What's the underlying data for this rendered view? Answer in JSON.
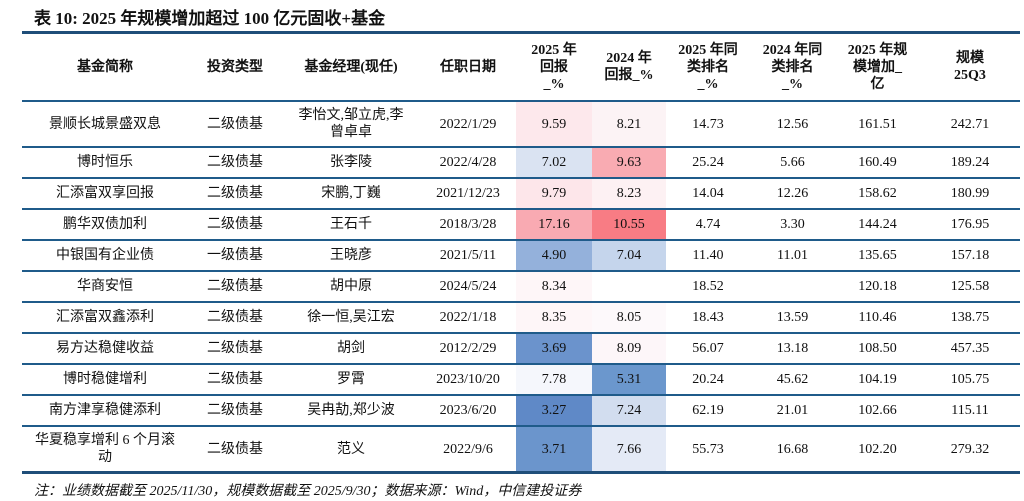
{
  "title": "表 10: 2025 年规模增加超过 100 亿元固收+基金",
  "headers": [
    "基金简称",
    "投资类型",
    "基金经理(现任)",
    "任职日期",
    "2025 年回报_%",
    "2024 年回报_%",
    "2025 年同类排名_%",
    "2024 年同类排名_%",
    "2025 年规模增加_亿",
    "规模 25Q3"
  ],
  "rows": [
    {
      "name": "景顺长城景盛双息",
      "type": "二级债基",
      "manager": "李怡文,邹立虎,李曾卓卓",
      "date": "2022/1/29",
      "r25": "9.59",
      "r24": "8.21",
      "rank25": "14.73",
      "rank24": "12.56",
      "inc": "161.51",
      "scale": "242.71",
      "c25": "#fde8ec",
      "c24": "#fcf3f5"
    },
    {
      "name": "博时恒乐",
      "type": "二级债基",
      "manager": "张李陵",
      "date": "2022/4/28",
      "r25": "7.02",
      "r24": "9.63",
      "rank25": "25.24",
      "rank24": "5.66",
      "inc": "160.49",
      "scale": "189.24",
      "c25": "#dae3f2",
      "c24": "#f9abb2"
    },
    {
      "name": "汇添富双享回报",
      "type": "二级债基",
      "manager": "宋鹏,丁巍",
      "date": "2021/12/23",
      "r25": "9.79",
      "r24": "8.23",
      "rank25": "14.04",
      "rank24": "12.26",
      "inc": "158.62",
      "scale": "180.99",
      "c25": "#fde6ea",
      "c24": "#fdf1f3"
    },
    {
      "name": "鹏华双债加利",
      "type": "二级债基",
      "manager": "王石千",
      "date": "2018/3/28",
      "r25": "17.16",
      "r24": "10.55",
      "rank25": "4.74",
      "rank24": "3.30",
      "inc": "144.24",
      "scale": "176.95",
      "c25": "#f9aab2",
      "c24": "#f87c84"
    },
    {
      "name": "中银国有企业债",
      "type": "一级债基",
      "manager": "王晓彦",
      "date": "2021/5/11",
      "r25": "4.90",
      "r24": "7.04",
      "rank25": "11.40",
      "rank24": "11.01",
      "inc": "135.65",
      "scale": "157.18",
      "c25": "#94b1db",
      "c24": "#c5d5ec"
    },
    {
      "name": "华商安恒",
      "type": "二级债基",
      "manager": "胡中原",
      "date": "2024/5/24",
      "r25": "8.34",
      "r24": "",
      "rank25": "18.52",
      "rank24": "",
      "inc": "120.18",
      "scale": "125.58",
      "c25": "#fef6f8",
      "c24": "#ffffff"
    },
    {
      "name": "汇添富双鑫添利",
      "type": "二级债基",
      "manager": "徐一恒,吴江宏",
      "date": "2022/1/18",
      "r25": "8.35",
      "r24": "8.05",
      "rank25": "18.43",
      "rank24": "13.59",
      "inc": "110.46",
      "scale": "138.75",
      "c25": "#fef6f8",
      "c24": "#fdf9fb"
    },
    {
      "name": "易方达稳健收益",
      "type": "二级债基",
      "manager": "胡剑",
      "date": "2012/2/29",
      "r25": "3.69",
      "r24": "8.09",
      "rank25": "56.07",
      "rank24": "13.18",
      "inc": "108.50",
      "scale": "457.35",
      "c25": "#6b93cc",
      "c24": "#fdf6f9"
    },
    {
      "name": "博时稳健增利",
      "type": "二级债基",
      "manager": "罗霄",
      "date": "2023/10/20",
      "r25": "7.78",
      "r24": "5.31",
      "rank25": "20.24",
      "rank24": "45.62",
      "inc": "104.19",
      "scale": "105.75",
      "c25": "#f5f7fc",
      "c24": "#6b97cd"
    },
    {
      "name": "南方津享稳健添利",
      "type": "二级债基",
      "manager": "吴冉劼,郑少波",
      "date": "2023/6/20",
      "r25": "3.27",
      "r24": "7.24",
      "rank25": "62.19",
      "rank24": "21.01",
      "inc": "102.66",
      "scale": "115.11",
      "c25": "#5f89c7",
      "c24": "#d2ddef"
    },
    {
      "name": "华夏稳享增利 6 个月滚动",
      "type": "二级债基",
      "manager": "范义",
      "date": "2022/9/6",
      "r25": "3.71",
      "r24": "7.66",
      "rank25": "55.73",
      "rank24": "16.68",
      "inc": "102.20",
      "scale": "279.32",
      "c25": "#6b95cc",
      "c24": "#e4eaf6"
    }
  ],
  "footnote": "注：业绩数据截至 2025/11/30，规模数据截至 2025/9/30；数据来源：Wind，中信建投证券"
}
